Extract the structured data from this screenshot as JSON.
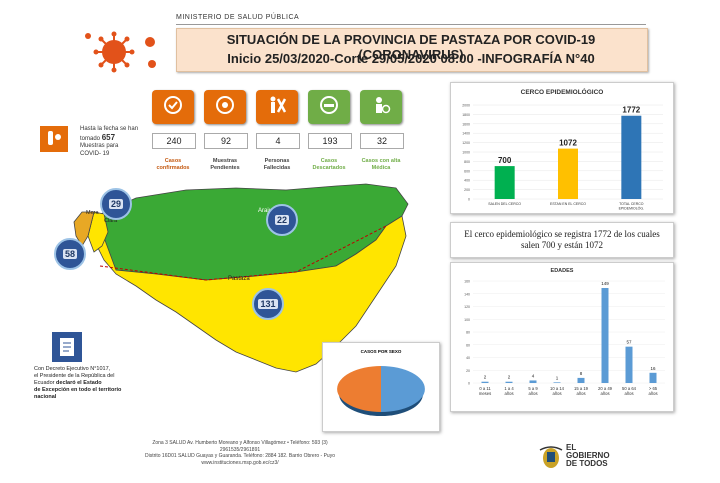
{
  "header": {
    "ministry": "MINISTERIO DE SALUD PÚBLICA",
    "title_line1": "SITUACIÓN DE LA PROVINCIA DE PASTAZA POR COVID-19 (CORONAVIRUS)",
    "title_line2": "Inicio 25/03/2020-Corte 29/05/2020 08:00 -INFOGRAFÍA N°40"
  },
  "tests": {
    "line1": "Hasta la fecha se han",
    "line2_prefix": "tomado",
    "count": "657",
    "line3": "Muestras para",
    "line4": "COVID- 19"
  },
  "stats": [
    {
      "value": "240",
      "label1": "Casos",
      "label2": "confirmados",
      "color": "#c55a11",
      "icon": "check-icon"
    },
    {
      "value": "92",
      "label1": "Muestras",
      "label2": "Pendientes",
      "color": "#444444",
      "icon": "samples-icon"
    },
    {
      "value": "4",
      "label1": "Personas",
      "label2": "Fallecidas",
      "color": "#444444",
      "icon": "deceased-icon"
    },
    {
      "value": "193",
      "label1": "Casos",
      "label2": "Descartados",
      "color": "#70ad47",
      "icon": "minus-icon"
    },
    {
      "value": "32",
      "label1": "Casos con alta",
      "label2": "Médica",
      "color": "#70ad47",
      "icon": "discharge-icon"
    }
  ],
  "map": {
    "regions": {
      "arajuno": "Arajuno",
      "pastaza": "Pastaza",
      "santa_clara": "Santa Clara",
      "mera": "Mera"
    },
    "counts": {
      "mera_top": "29",
      "arajuno": "22",
      "pastaza": "131",
      "west": "58"
    }
  },
  "decree": {
    "line1": "Con Decreto Ejecutivo N°1017,",
    "line2": "el Presidente de la República del",
    "line3": "Ecuador",
    "line3_bold": "declaró el Estado",
    "line4": "de Excepción en todo el territorio",
    "line5": "nacional"
  },
  "fence_note": {
    "text": "El cerco epidemiológico se registra 1772 de los cuales salen 700 y están 1072"
  },
  "pie_title": "CASOS POR SEXO",
  "footer": {
    "line1": "Zona 3 SALUD Av. Humberto Moreano y Alfonso Villagómez • Teléfono: 593 (3)",
    "line2": "2961535/2961891",
    "line3": "Distrito 16D01 SALUD Guayas y Guaranda. Teléfono: 2884 182. Barrio Obrero - Puyo",
    "line4": "www.instituciones.msp.gob.ec/cz3/"
  },
  "gov": {
    "line1": "EL",
    "line2": "GOBIERNO",
    "line3": "DE TODOS"
  },
  "chart_data": [
    {
      "type": "bar",
      "title": "CERCO EPIDEMIOLÓGICO",
      "categories": [
        "SALEN DEL CERCO",
        "ESTAN EN EL CERCO",
        "TOTAL CERCO EPIDEMIOLÓG."
      ],
      "values": [
        700,
        1072,
        1772
      ],
      "colors": [
        "#00b050",
        "#ffc000",
        "#2e75b6"
      ],
      "yticks": [
        0,
        200,
        400,
        600,
        800,
        1000,
        1200,
        1400,
        1600,
        1800,
        2000
      ],
      "ylim": [
        0,
        2000
      ]
    },
    {
      "type": "bar",
      "title": "EDADES",
      "categories": [
        "0 a 11 meses",
        "1 a 4 años",
        "5 a 9 años",
        "10 a 14 años",
        "15 a 19 años",
        "20 a 49 años",
        "50 a 64 años",
        "> 65 años"
      ],
      "values": [
        2,
        2,
        4,
        1,
        8,
        149,
        57,
        16
      ],
      "color": "#5b9bd5",
      "yticks": [
        0,
        20,
        40,
        60,
        80,
        100,
        120,
        140,
        160
      ],
      "ylim": [
        0,
        160
      ]
    }
  ]
}
